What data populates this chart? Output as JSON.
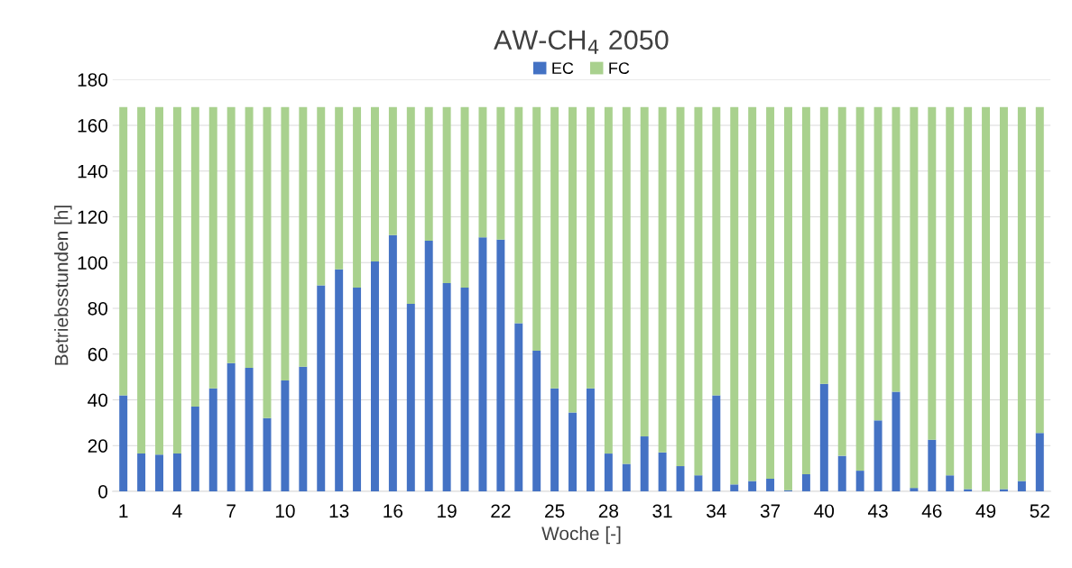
{
  "chart_data": {
    "type": "bar",
    "stacked": true,
    "title": "AW-CH$_{4}$ 2050",
    "xlabel": "Woche [-]",
    "ylabel": "Betriebsstunden [h]",
    "categories": [
      "1",
      null,
      null,
      "4",
      null,
      null,
      "7",
      null,
      null,
      "10",
      null,
      null,
      "13",
      null,
      null,
      "16",
      null,
      null,
      "19",
      null,
      null,
      "22",
      null,
      null,
      "25",
      null,
      null,
      "28",
      null,
      null,
      "31",
      null,
      null,
      "34",
      null,
      null,
      "37",
      null,
      null,
      "40",
      null,
      null,
      "43",
      null,
      null,
      "46",
      null,
      null,
      "49",
      null,
      null,
      "52"
    ],
    "series": [
      {
        "name": "EC",
        "color": "#4472c4",
        "values": [
          42,
          16.5,
          16,
          16.5,
          37,
          45,
          56,
          54,
          32,
          48.5,
          54.5,
          90,
          97,
          89,
          100.5,
          112,
          82,
          109.5,
          91,
          89,
          111,
          110,
          73.5,
          61.5,
          45,
          34.5,
          45,
          16.5,
          12,
          24,
          17,
          11,
          7,
          42,
          3,
          4.5,
          5.5,
          0.5,
          7.5,
          47,
          15.5,
          9,
          31,
          43.5,
          1.5,
          22.5,
          7,
          1,
          0,
          1,
          4.5,
          25.5
        ]
      },
      {
        "name": "FC",
        "color": "#a9d18e",
        "values": [
          126,
          151.5,
          152,
          151.5,
          131,
          123,
          112,
          114,
          136,
          119.5,
          113.5,
          78,
          71,
          79,
          67.5,
          56,
          86,
          58.5,
          77,
          79,
          57,
          58,
          94.5,
          106.5,
          123,
          133.5,
          123,
          151.5,
          156,
          144,
          151,
          157,
          161,
          126,
          165,
          163.5,
          162.5,
          167.5,
          160.5,
          121,
          152.5,
          159,
          137,
          124.5,
          166.5,
          145.5,
          161,
          167,
          168,
          167,
          163.5,
          142.5
        ]
      }
    ],
    "ylim": [
      0,
      180
    ],
    "yticks": [
      0,
      20,
      40,
      60,
      80,
      100,
      120,
      140,
      160,
      180
    ],
    "grid": "y",
    "legend": "top"
  }
}
